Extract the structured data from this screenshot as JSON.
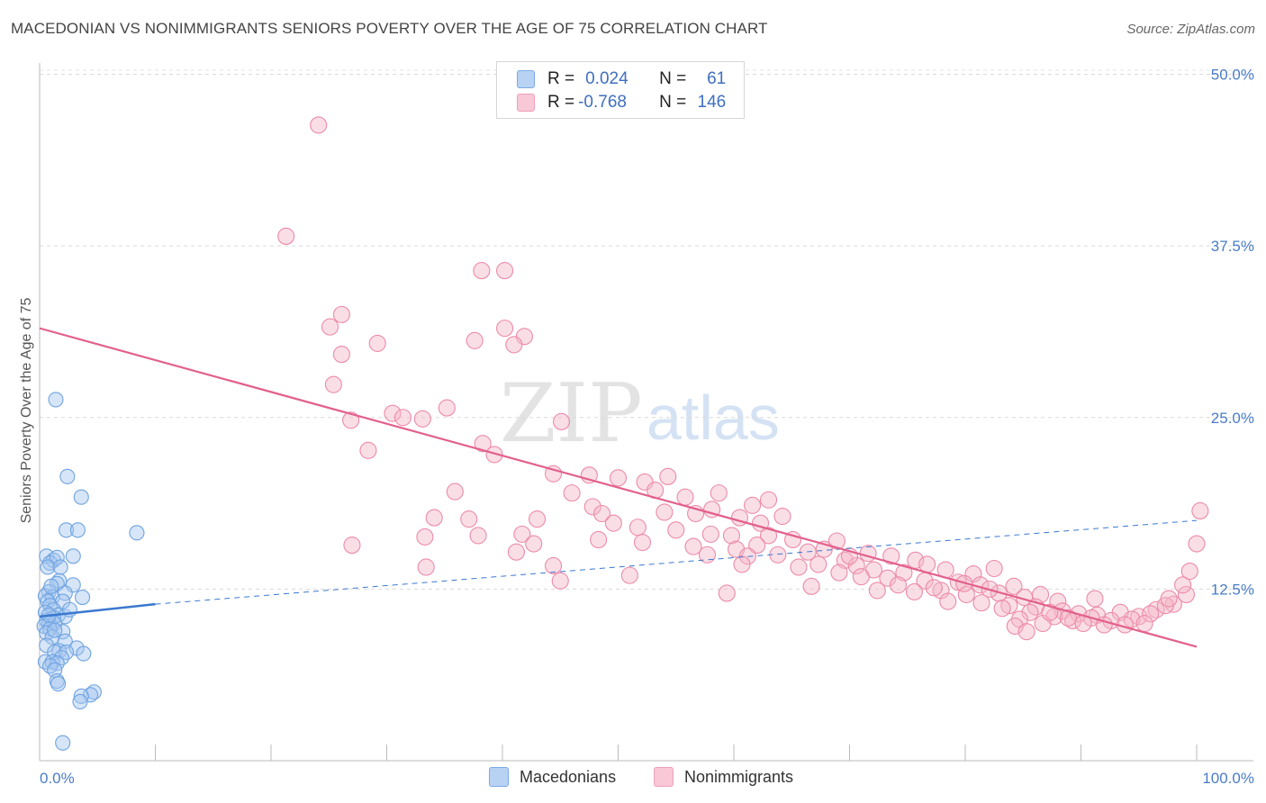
{
  "header": {
    "title": "MACEDONIAN VS NONIMMIGRANTS SENIORS POVERTY OVER THE AGE OF 75 CORRELATION CHART",
    "source": "Source: ZipAtlas.com"
  },
  "legend_top": {
    "rows": [
      {
        "r_label": "R =",
        "r_value": "0.024",
        "n_label": "N =",
        "n_value": "61",
        "color": "#a9c8ef"
      },
      {
        "r_label": "R =",
        "r_value": "-0.768",
        "n_label": "N =",
        "n_value": "146",
        "color": "#f4b5c8"
      }
    ]
  },
  "legend_bottom": {
    "items": [
      {
        "label": "Macedonians",
        "color": "#a9c8ef"
      },
      {
        "label": "Nonimmigrants",
        "color": "#f4b5c8"
      }
    ]
  },
  "watermark": {
    "zip": "ZIP",
    "atlas": "atlas"
  },
  "chart_data": {
    "type": "scatter",
    "title": "MACEDONIAN VS NONIMMIGRANTS SENIORS POVERTY OVER THE AGE OF 75 CORRELATION CHART",
    "xlabel": "",
    "ylabel": "Seniors Poverty Over the Age of 75",
    "xlim": [
      0,
      100
    ],
    "ylim": [
      0,
      52
    ],
    "x_tick_labels": [
      "0.0%",
      "100.0%"
    ],
    "y_ticks": [
      12.5,
      25.0,
      37.5,
      50.0
    ],
    "y_tick_labels": [
      "12.5%",
      "25.0%",
      "37.5%",
      "50.0%"
    ],
    "grid": true,
    "colors": {
      "macedonians": "#6fa3e0",
      "nonimmigrants": "#ec8aa8",
      "macedonians_line": "#3a78cf",
      "nonimmigrants_line": "#e2608c"
    },
    "series": [
      {
        "name": "Macedonians",
        "r": 0.024,
        "n": 61,
        "trend": {
          "x": [
            0,
            10
          ],
          "y": [
            10.5,
            11.4
          ],
          "dashed_extension": {
            "x": [
              10,
              100
            ],
            "y": [
              11.4,
              17.5
            ]
          }
        },
        "points": [
          [
            1.4,
            26.3
          ],
          [
            2.4,
            20.7
          ],
          [
            3.6,
            19.2
          ],
          [
            8.4,
            16.6
          ],
          [
            2.3,
            16.8
          ],
          [
            3.3,
            16.8
          ],
          [
            0.6,
            14.9
          ],
          [
            1.2,
            14.6
          ],
          [
            0.9,
            14.4
          ],
          [
            2.9,
            14.9
          ],
          [
            1.5,
            14.8
          ],
          [
            0.7,
            14.1
          ],
          [
            1.7,
            13.1
          ],
          [
            1.5,
            12.9
          ],
          [
            2.9,
            12.8
          ],
          [
            0.8,
            12.3
          ],
          [
            2.2,
            12.2
          ],
          [
            0.5,
            12.0
          ],
          [
            1.1,
            11.9
          ],
          [
            3.7,
            11.9
          ],
          [
            0.7,
            11.6
          ],
          [
            2.0,
            11.6
          ],
          [
            0.9,
            11.3
          ],
          [
            1.2,
            11.0
          ],
          [
            0.5,
            10.8
          ],
          [
            1.6,
            10.6
          ],
          [
            2.2,
            10.5
          ],
          [
            1.2,
            10.4
          ],
          [
            0.6,
            10.2
          ],
          [
            0.8,
            10.0
          ],
          [
            1.3,
            10.0
          ],
          [
            0.4,
            9.8
          ],
          [
            0.9,
            9.6
          ],
          [
            2.0,
            9.4
          ],
          [
            0.6,
            9.3
          ],
          [
            1.1,
            9.0
          ],
          [
            2.2,
            8.7
          ],
          [
            0.6,
            8.4
          ],
          [
            3.2,
            8.2
          ],
          [
            1.7,
            8.0
          ],
          [
            1.3,
            7.9
          ],
          [
            2.3,
            7.9
          ],
          [
            3.8,
            7.8
          ],
          [
            1.9,
            7.5
          ],
          [
            0.5,
            7.2
          ],
          [
            1.1,
            7.2
          ],
          [
            1.5,
            7.1
          ],
          [
            0.9,
            6.9
          ],
          [
            1.3,
            6.6
          ],
          [
            1.5,
            5.8
          ],
          [
            1.6,
            5.6
          ],
          [
            4.7,
            5.0
          ],
          [
            4.4,
            4.8
          ],
          [
            3.6,
            4.7
          ],
          [
            3.5,
            4.3
          ],
          [
            2.0,
            1.3
          ],
          [
            0.8,
            10.6
          ],
          [
            1.0,
            12.7
          ],
          [
            2.6,
            11.0
          ],
          [
            1.8,
            14.1
          ],
          [
            1.3,
            9.5
          ]
        ]
      },
      {
        "name": "Nonimmigrants",
        "r": -0.768,
        "n": 146,
        "trend": {
          "x": [
            0,
            100
          ],
          "y": [
            31.5,
            8.3
          ]
        },
        "points": [
          [
            24.1,
            46.3
          ],
          [
            21.3,
            38.2
          ],
          [
            38.2,
            35.7
          ],
          [
            40.2,
            35.7
          ],
          [
            26.1,
            32.5
          ],
          [
            25.1,
            31.6
          ],
          [
            40.2,
            31.5
          ],
          [
            41.9,
            30.9
          ],
          [
            37.6,
            30.6
          ],
          [
            29.2,
            30.4
          ],
          [
            41.0,
            30.3
          ],
          [
            26.1,
            29.6
          ],
          [
            25.4,
            27.4
          ],
          [
            35.2,
            25.7
          ],
          [
            30.5,
            25.3
          ],
          [
            31.4,
            25.0
          ],
          [
            33.1,
            24.9
          ],
          [
            26.9,
            24.8
          ],
          [
            45.1,
            24.7
          ],
          [
            38.3,
            23.1
          ],
          [
            28.4,
            22.6
          ],
          [
            39.3,
            22.3
          ],
          [
            44.4,
            20.9
          ],
          [
            47.5,
            20.8
          ],
          [
            50.0,
            20.6
          ],
          [
            52.3,
            20.3
          ],
          [
            54.3,
            20.7
          ],
          [
            35.9,
            19.6
          ],
          [
            46.0,
            19.5
          ],
          [
            53.2,
            19.7
          ],
          [
            55.8,
            19.2
          ],
          [
            58.7,
            19.5
          ],
          [
            61.6,
            18.6
          ],
          [
            63.0,
            19.0
          ],
          [
            47.8,
            18.5
          ],
          [
            48.6,
            18.0
          ],
          [
            54.0,
            18.1
          ],
          [
            56.7,
            18.0
          ],
          [
            58.1,
            18.3
          ],
          [
            60.5,
            17.7
          ],
          [
            62.3,
            17.3
          ],
          [
            64.2,
            17.8
          ],
          [
            34.1,
            17.7
          ],
          [
            37.1,
            17.6
          ],
          [
            43.0,
            17.6
          ],
          [
            49.6,
            17.3
          ],
          [
            51.7,
            17.0
          ],
          [
            55.0,
            16.8
          ],
          [
            58.0,
            16.5
          ],
          [
            59.8,
            16.4
          ],
          [
            63.0,
            16.4
          ],
          [
            65.1,
            16.1
          ],
          [
            33.3,
            16.3
          ],
          [
            37.9,
            16.4
          ],
          [
            41.7,
            16.5
          ],
          [
            48.3,
            16.1
          ],
          [
            52.1,
            15.9
          ],
          [
            56.5,
            15.6
          ],
          [
            60.2,
            15.4
          ],
          [
            62.0,
            15.7
          ],
          [
            68.9,
            16.0
          ],
          [
            27.0,
            15.7
          ],
          [
            41.2,
            15.2
          ],
          [
            42.7,
            15.8
          ],
          [
            57.7,
            15.0
          ],
          [
            61.2,
            14.9
          ],
          [
            63.8,
            15.0
          ],
          [
            66.4,
            15.2
          ],
          [
            69.6,
            14.6
          ],
          [
            71.6,
            15.1
          ],
          [
            73.6,
            14.9
          ],
          [
            75.7,
            14.6
          ],
          [
            33.4,
            14.1
          ],
          [
            44.4,
            14.2
          ],
          [
            51.0,
            13.5
          ],
          [
            65.6,
            14.1
          ],
          [
            67.3,
            14.3
          ],
          [
            70.6,
            14.2
          ],
          [
            72.1,
            13.9
          ],
          [
            74.7,
            13.7
          ],
          [
            76.7,
            14.3
          ],
          [
            78.3,
            13.9
          ],
          [
            80.7,
            13.6
          ],
          [
            82.5,
            14.0
          ],
          [
            69.1,
            13.7
          ],
          [
            73.3,
            13.3
          ],
          [
            76.5,
            13.1
          ],
          [
            79.4,
            13.0
          ],
          [
            81.3,
            12.8
          ],
          [
            84.2,
            12.7
          ],
          [
            45.0,
            13.1
          ],
          [
            59.4,
            12.2
          ],
          [
            66.7,
            12.7
          ],
          [
            72.4,
            12.4
          ],
          [
            75.6,
            12.3
          ],
          [
            77.9,
            12.4
          ],
          [
            80.1,
            12.1
          ],
          [
            82.9,
            12.2
          ],
          [
            85.1,
            11.9
          ],
          [
            86.5,
            12.1
          ],
          [
            88.0,
            11.6
          ],
          [
            91.2,
            11.8
          ],
          [
            78.5,
            11.6
          ],
          [
            81.4,
            11.5
          ],
          [
            83.8,
            11.3
          ],
          [
            86.1,
            11.2
          ],
          [
            88.4,
            10.9
          ],
          [
            89.8,
            10.7
          ],
          [
            91.4,
            10.6
          ],
          [
            93.4,
            10.8
          ],
          [
            95.0,
            10.5
          ],
          [
            96.5,
            11.0
          ],
          [
            98.0,
            11.4
          ],
          [
            99.1,
            12.1
          ],
          [
            83.2,
            11.1
          ],
          [
            85.6,
            10.8
          ],
          [
            87.7,
            10.5
          ],
          [
            89.3,
            10.2
          ],
          [
            90.9,
            10.4
          ],
          [
            92.6,
            10.2
          ],
          [
            94.4,
            10.3
          ],
          [
            96.0,
            10.7
          ],
          [
            97.3,
            11.3
          ],
          [
            84.7,
            10.3
          ],
          [
            86.7,
            10.0
          ],
          [
            90.2,
            10.0
          ],
          [
            92.0,
            9.9
          ],
          [
            93.8,
            9.9
          ],
          [
            95.5,
            10.0
          ],
          [
            97.6,
            11.8
          ],
          [
            98.8,
            12.8
          ],
          [
            99.4,
            13.8
          ],
          [
            100.0,
            15.8
          ],
          [
            100.3,
            18.2
          ],
          [
            60.7,
            14.3
          ],
          [
            67.8,
            15.4
          ],
          [
            70.0,
            14.9
          ],
          [
            84.3,
            9.8
          ],
          [
            85.3,
            9.4
          ],
          [
            71.0,
            13.4
          ],
          [
            74.2,
            12.8
          ],
          [
            77.3,
            12.6
          ],
          [
            79.9,
            12.9
          ],
          [
            82.1,
            12.5
          ],
          [
            87.3,
            10.8
          ],
          [
            88.9,
            10.4
          ]
        ]
      }
    ]
  }
}
